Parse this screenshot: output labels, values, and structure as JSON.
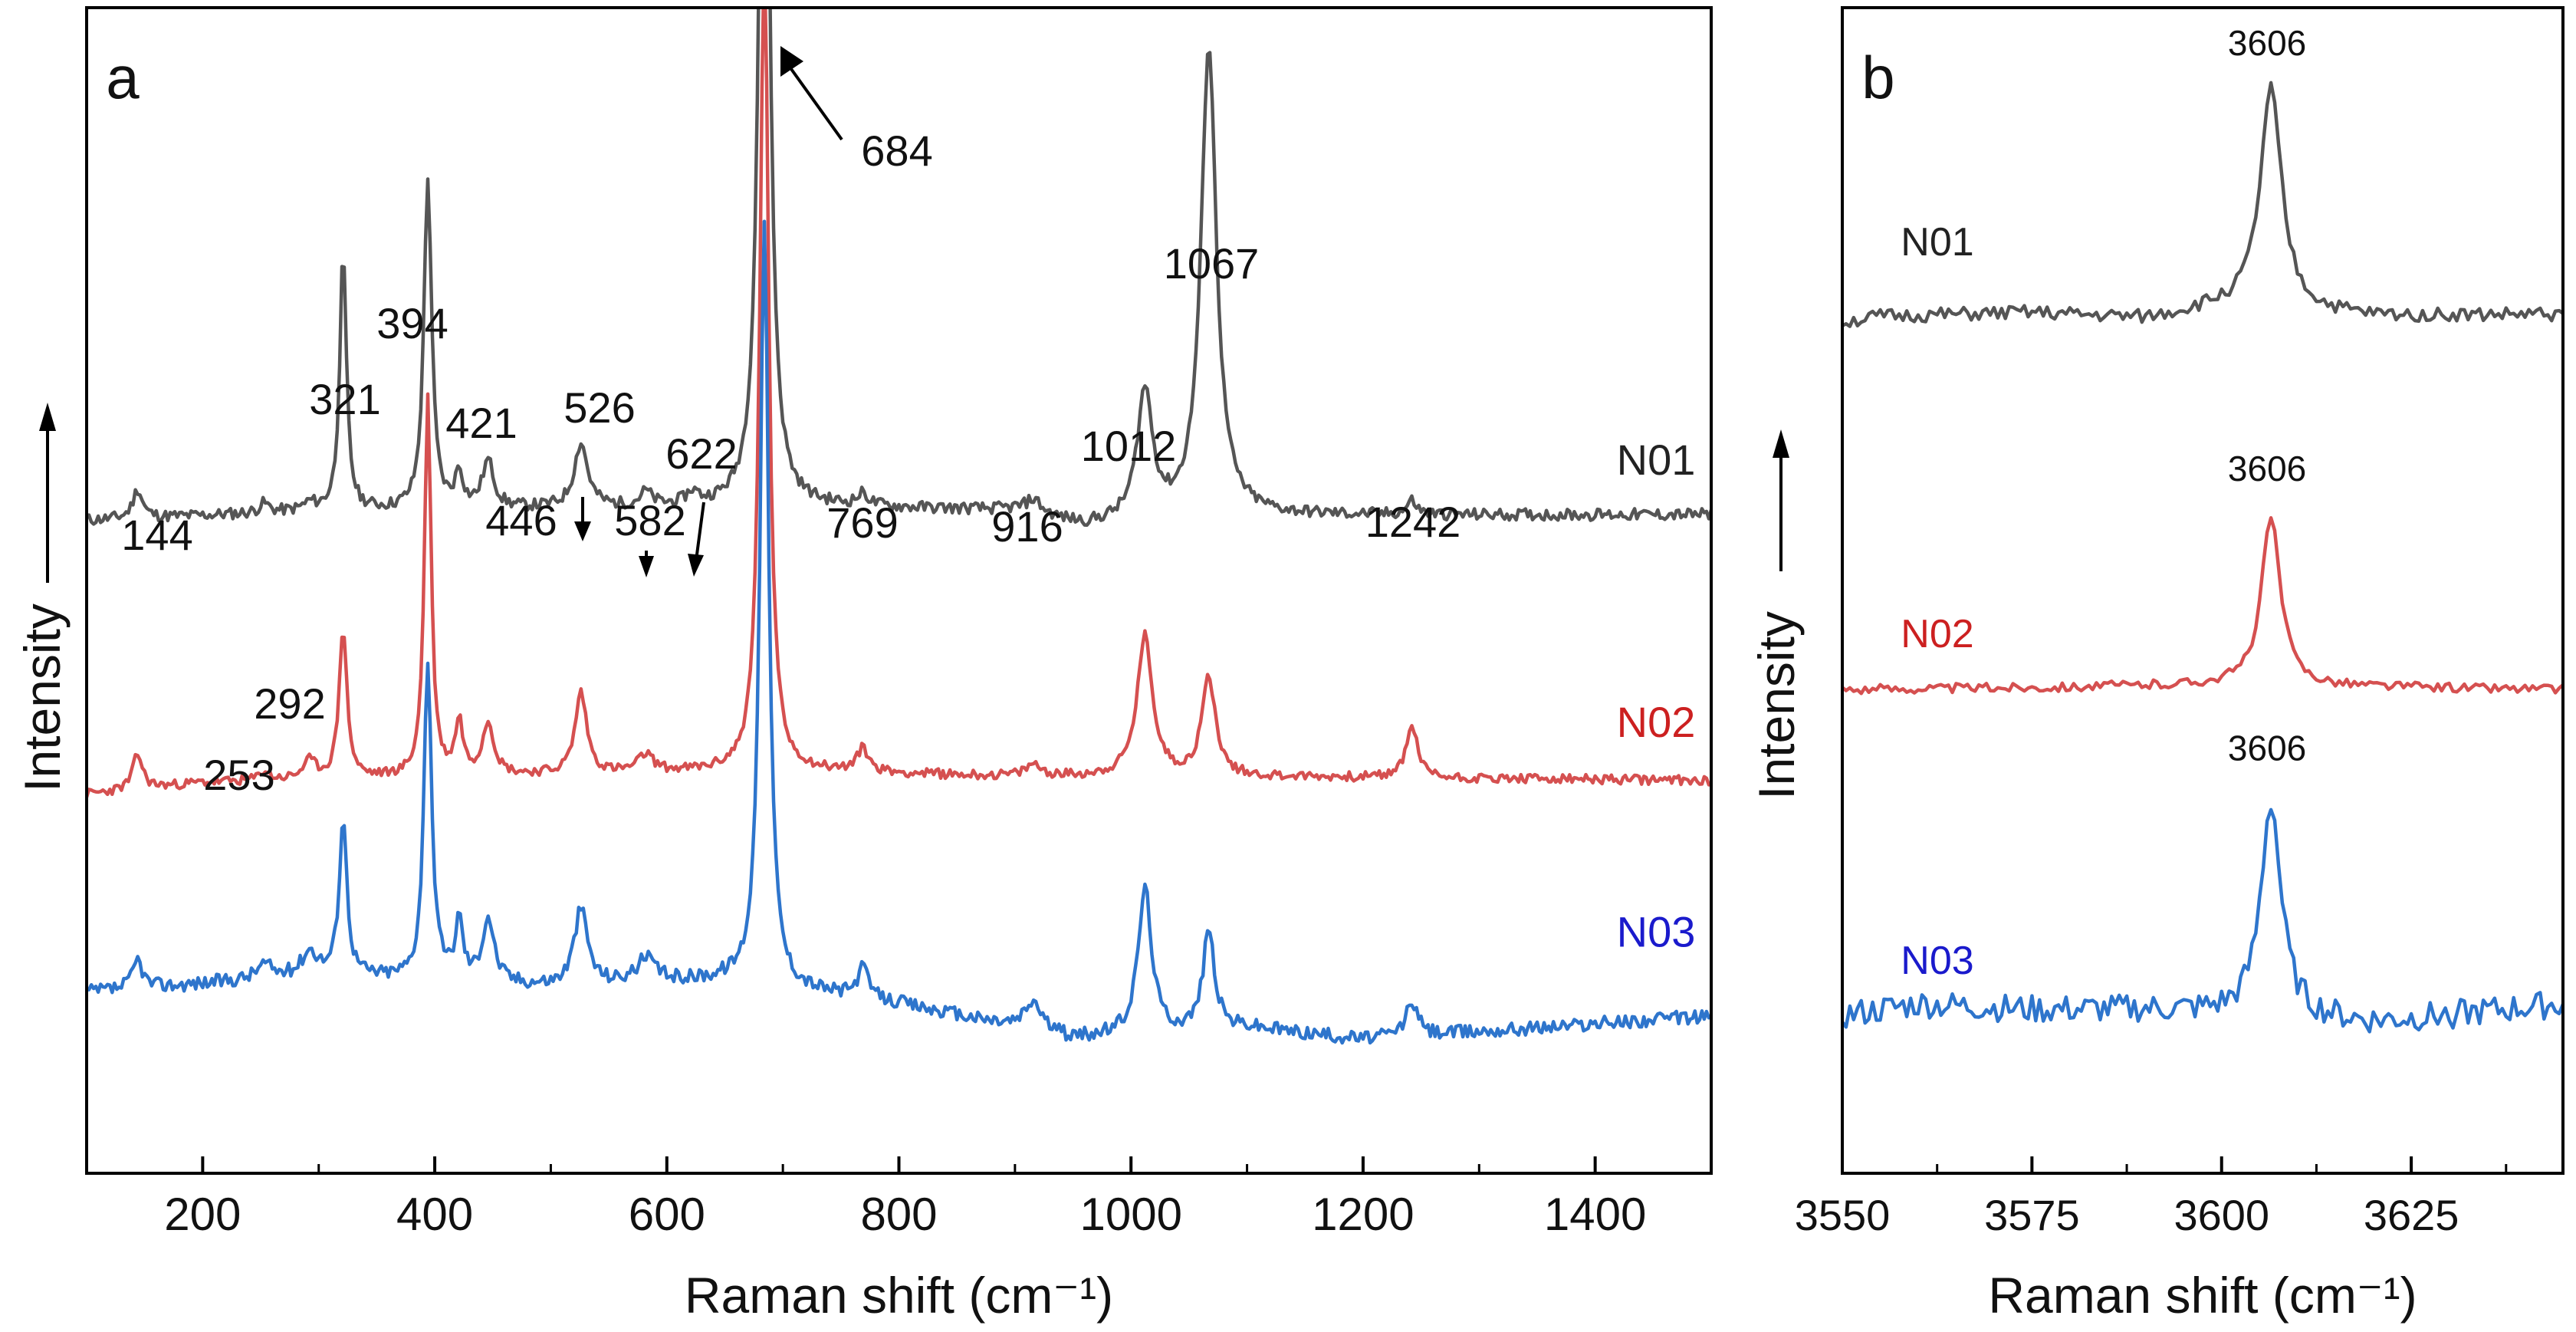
{
  "chart_data": [
    {
      "type": "line",
      "panel_label": "a",
      "xlabel": "Raman shift (cm⁻¹)",
      "ylabel": "Intensity",
      "xlim": [
        100,
        1500
      ],
      "ylim": [
        0,
        1
      ],
      "xticks": [
        200,
        400,
        600,
        800,
        1000,
        1200,
        1400
      ],
      "yticks": [],
      "series": [
        {
          "name": "N01",
          "color": "#555555",
          "label_color": "#222222",
          "offset": 0.56,
          "noise_seed": 11,
          "noise_amp": 0.005,
          "baseline": [
            [
              100,
              0.0
            ],
            [
              300,
              0.008
            ],
            [
              500,
              0.01
            ],
            [
              700,
              0.012
            ],
            [
              900,
              0.008
            ],
            [
              960,
              -0.005
            ],
            [
              1100,
              0.004
            ],
            [
              1500,
              0.005
            ]
          ],
          "peaks": [
            [
              144,
              0.025,
              5
            ],
            [
              253,
              0.008,
              5
            ],
            [
              292,
              0.006,
              6
            ],
            [
              321,
              0.22,
              3.5
            ],
            [
              394,
              0.285,
              4
            ],
            [
              421,
              0.03,
              4
            ],
            [
              446,
              0.04,
              6
            ],
            [
              526,
              0.055,
              7
            ],
            [
              582,
              0.012,
              6
            ],
            [
              622,
              0.01,
              6
            ],
            [
              684,
              0.85,
              5
            ],
            [
              769,
              0.01,
              6
            ],
            [
              916,
              0.012,
              8
            ],
            [
              1012,
              0.11,
              8
            ],
            [
              1067,
              0.405,
              8
            ],
            [
              1242,
              0.012,
              5
            ]
          ]
        },
        {
          "name": "N02",
          "color": "#d55050",
          "label_color": "#cc2020",
          "offset": 0.335,
          "noise_seed": 23,
          "noise_amp": 0.004,
          "baseline": [
            [
              100,
              -0.01
            ],
            [
              200,
              0.0
            ],
            [
              400,
              0.005
            ],
            [
              700,
              0.01
            ],
            [
              900,
              0.005
            ],
            [
              1100,
              0.005
            ],
            [
              1500,
              0.002
            ]
          ],
          "peaks": [
            [
              144,
              0.03,
              5
            ],
            [
              253,
              0.008,
              5
            ],
            [
              292,
              0.015,
              7
            ],
            [
              321,
              0.13,
              4
            ],
            [
              394,
              0.325,
              3.5
            ],
            [
              421,
              0.045,
              4
            ],
            [
              446,
              0.045,
              6
            ],
            [
              526,
              0.07,
              6
            ],
            [
              582,
              0.015,
              8
            ],
            [
              684,
              0.705,
              4.5
            ],
            [
              769,
              0.02,
              6
            ],
            [
              916,
              0.01,
              8
            ],
            [
              1012,
              0.12,
              8
            ],
            [
              1067,
              0.085,
              7
            ],
            [
              1242,
              0.045,
              6
            ]
          ]
        },
        {
          "name": "N03",
          "color": "#2e75cc",
          "label_color": "#1a1acc",
          "offset": 0.155,
          "noise_seed": 37,
          "noise_amp": 0.006,
          "baseline": [
            [
              100,
              0.0
            ],
            [
              300,
              0.015
            ],
            [
              500,
              0.005
            ],
            [
              650,
              0.01
            ],
            [
              800,
              -0.01
            ],
            [
              950,
              -0.04
            ],
            [
              1100,
              -0.03
            ],
            [
              1200,
              -0.04
            ],
            [
              1500,
              -0.02
            ]
          ],
          "peaks": [
            [
              144,
              0.025,
              5
            ],
            [
              253,
              0.012,
              8
            ],
            [
              292,
              0.02,
              8
            ],
            [
              321,
              0.135,
              4
            ],
            [
              394,
              0.275,
              4
            ],
            [
              421,
              0.05,
              4
            ],
            [
              446,
              0.055,
              6
            ],
            [
              526,
              0.065,
              7
            ],
            [
              582,
              0.02,
              10
            ],
            [
              684,
              0.655,
              4.5
            ],
            [
              769,
              0.025,
              6
            ],
            [
              916,
              0.025,
              9
            ],
            [
              1012,
              0.125,
              7
            ],
            [
              1067,
              0.085,
              6
            ],
            [
              1242,
              0.03,
              6
            ]
          ]
        }
      ],
      "annotations": [
        {
          "text": "144"
        },
        {
          "text": "321"
        },
        {
          "text": "394"
        },
        {
          "text": "421"
        },
        {
          "text": "446"
        },
        {
          "text": "526"
        },
        {
          "text": "582"
        },
        {
          "text": "622"
        },
        {
          "text": "684"
        },
        {
          "text": "769"
        },
        {
          "text": "916"
        },
        {
          "text": "1012"
        },
        {
          "text": "1067"
        },
        {
          "text": "1242"
        },
        {
          "text": "292"
        },
        {
          "text": "253"
        }
      ]
    },
    {
      "type": "line",
      "panel_label": "b",
      "xlabel": "Raman shift (cm⁻¹)",
      "ylabel": "Intensity",
      "xlim": [
        3550,
        3645
      ],
      "ylim": [
        0,
        1
      ],
      "xticks": [
        3550,
        3575,
        3600,
        3625
      ],
      "yticks": [],
      "series": [
        {
          "name": "N01",
          "color": "#555555",
          "label_color": "#222222",
          "offset": 0.735,
          "peak_x": 3606,
          "peak_label": "3606",
          "noise_seed": 51,
          "noise_amp": 0.006,
          "baseline": [
            [
              3550,
              -0.005
            ],
            [
              3555,
              0.0
            ],
            [
              3575,
              0.003
            ],
            [
              3590,
              -0.002
            ],
            [
              3600,
              0.008
            ],
            [
              3620,
              0.0
            ],
            [
              3645,
              0.002
            ]
          ],
          "peaks": [
            [
              3606.5,
              0.19,
              1.7
            ]
          ]
        },
        {
          "name": "N02",
          "color": "#d55050",
          "label_color": "#cc2020",
          "offset": 0.415,
          "peak_x": 3606,
          "peak_label": "3606",
          "noise_seed": 63,
          "noise_amp": 0.004,
          "baseline": [
            [
              3550,
              0.0
            ],
            [
              3580,
              0.002
            ],
            [
              3600,
              0.004
            ],
            [
              3645,
              0.0
            ]
          ],
          "peaks": [
            [
              3606.5,
              0.145,
              1.5
            ]
          ]
        },
        {
          "name": "N03",
          "color": "#2e75cc",
          "label_color": "#1a1acc",
          "offset": 0.135,
          "peak_x": 3606,
          "peak_label": "3606",
          "noise_seed": 77,
          "noise_amp": 0.012,
          "baseline": [
            [
              3550,
              0.0
            ],
            [
              3560,
              0.01
            ],
            [
              3575,
              0.005
            ],
            [
              3590,
              0.005
            ],
            [
              3600,
              0.002
            ],
            [
              3620,
              -0.006
            ],
            [
              3645,
              0.01
            ]
          ],
          "peaks": [
            [
              3606.5,
              0.185,
              1.6
            ]
          ]
        }
      ]
    }
  ]
}
